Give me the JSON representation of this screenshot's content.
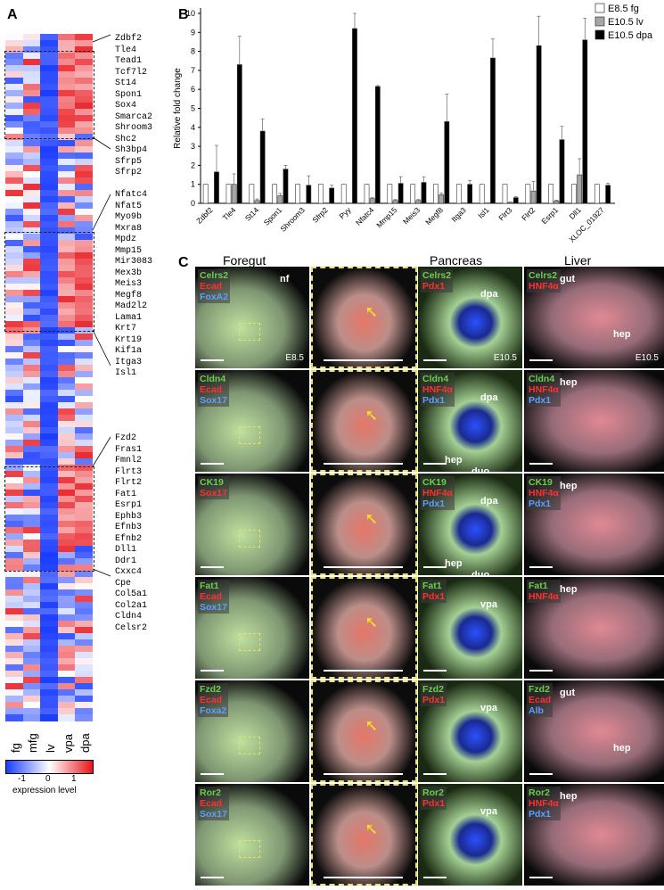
{
  "panel_labels": {
    "a": "A",
    "b": "B",
    "c": "C"
  },
  "heatmap": {
    "columns": [
      "fg",
      "mfg",
      "lv",
      "vpa",
      "dpa"
    ],
    "colorbar": {
      "ticks": [
        "-1",
        "0",
        "1"
      ],
      "title": "expression level",
      "colors": {
        "low": "#1a3cff",
        "mid": "#ffffff",
        "high": "#e8141c"
      }
    },
    "gene_groups": [
      [
        "Zdbf2",
        "Tle4",
        "Tead1",
        "Tcf7l2",
        "St14",
        "Spon1",
        "Sox4",
        "Smarca2",
        "Shroom3",
        "Shc2",
        "Sh3bp4",
        "Sfrp5",
        "Sfrp2"
      ],
      [
        "Nfatc4",
        "Nfat5",
        "Myo9b",
        "Mxra8",
        "Mpdz",
        "Mmp15",
        "Mir3083",
        "Mex3b",
        "Meis3",
        "Megf8",
        "Mad2l2",
        "Lama1",
        "Krt7",
        "Krt19",
        "Kif1a",
        "Itga3",
        "Isl1"
      ],
      [
        "Fzd2",
        "Fras1",
        "Fmnl2",
        "Flrt3",
        "Flrt2",
        "Fat1",
        "Esrp1",
        "Ephb3",
        "Efnb3",
        "Efnb2",
        "Dll1",
        "Ddr1",
        "Cxxc4",
        "Cpe",
        "Col5a1",
        "Col2a1",
        "Cldn4",
        "Celsr2"
      ]
    ]
  },
  "chart_data": {
    "type": "bar",
    "title": "",
    "xlabel": "",
    "ylabel": "Relative fold change",
    "ylim": [
      0,
      10
    ],
    "yticks": [
      0,
      1,
      2,
      3,
      4,
      5,
      6,
      7,
      8,
      9,
      10
    ],
    "legend_position": "top-right",
    "categories": [
      "Zdbf2",
      "Tle4",
      "St14",
      "Spon1",
      "Shroom3",
      "Sfrp2",
      "Pyy",
      "Nfatc4",
      "Mmp15",
      "Meis3",
      "Megf8",
      "Itga3",
      "Isl1",
      "Flrt3",
      "Flrt2",
      "Esrp1",
      "Dll1",
      "XLOC_01927"
    ],
    "series": [
      {
        "name": "E8.5 fg",
        "color": "#ffffff",
        "values": [
          1,
          1,
          1,
          1,
          1,
          1,
          1,
          1,
          1,
          1,
          1,
          1,
          1,
          1,
          1,
          1,
          1,
          1
        ]
      },
      {
        "name": "E10.5 lv",
        "color": "#a6a6a6",
        "values": [
          0.02,
          1.0,
          0.15,
          0.4,
          0.02,
          0.02,
          0.02,
          0.25,
          0.15,
          0.15,
          0.45,
          0.02,
          0.02,
          0.05,
          0.65,
          0.12,
          1.5,
          0.02
        ],
        "errors": [
          0,
          0.55,
          0.08,
          0.12,
          0,
          0,
          0,
          0.05,
          0.05,
          0.05,
          0.1,
          0,
          0,
          0.02,
          0.5,
          0.05,
          0.85,
          0
        ]
      },
      {
        "name": "E10.5 dpa",
        "color": "#000000",
        "values": [
          1.65,
          7.3,
          3.8,
          1.8,
          0.95,
          0.8,
          9.2,
          6.15,
          1.05,
          1.1,
          4.3,
          1.0,
          7.65,
          0.3,
          8.3,
          3.35,
          8.6,
          0.95
        ],
        "errors": [
          1.4,
          1.5,
          0.65,
          0.2,
          0.5,
          0.15,
          0.8,
          0.05,
          0.35,
          0.3,
          1.45,
          0.2,
          1.0,
          0.05,
          1.55,
          0.7,
          1.15,
          0.1
        ]
      }
    ]
  },
  "micro": {
    "col_headers": [
      "Foregut",
      "Pancreas",
      "Liver"
    ],
    "rows": [
      {
        "fg": [
          "Celrs2",
          "Ecad",
          "FoxA2"
        ],
        "panc": [
          "Celrs2",
          "Pdx1"
        ],
        "liv": [
          "Celrs2",
          "HNF4α"
        ],
        "fg_text": [
          "nf",
          "E8.5"
        ],
        "panc_text": [
          "dpa",
          "E10.5"
        ],
        "liv_text": [
          "gut",
          "hep",
          "E10.5"
        ]
      },
      {
        "fg": [
          "Cldn4",
          "Ecad",
          "Sox17"
        ],
        "panc": [
          "Cldn4",
          "HNF4α",
          "Pdx1"
        ],
        "liv": [
          "Cldn4",
          "HNF4α",
          "Pdx1"
        ],
        "panc_text": [
          "dpa",
          "hep",
          "duo"
        ],
        "liv_text": [
          "hep"
        ]
      },
      {
        "fg": [
          "CK19",
          "Sox17"
        ],
        "panc": [
          "CK19",
          "HNF4α",
          "Pdx1"
        ],
        "liv": [
          "CK19",
          "HNF4α",
          "Pdx1"
        ],
        "panc_text": [
          "dpa",
          "hep",
          "duo"
        ],
        "liv_text": [
          "hep"
        ]
      },
      {
        "fg": [
          "Fat1",
          "Ecad",
          "Sox17"
        ],
        "panc": [
          "Fat1",
          "Pdx1"
        ],
        "liv": [
          "Fat1",
          "HNF4α"
        ],
        "panc_text": [
          "vpa"
        ],
        "liv_text": [
          "hep"
        ]
      },
      {
        "fg": [
          "Fzd2",
          "Ecad",
          "Foxa2"
        ],
        "panc": [
          "Fzd2",
          "Pdx1"
        ],
        "liv": [
          "Fzd2",
          "Ecad",
          "Alb"
        ],
        "panc_text": [
          "vpa"
        ],
        "liv_text": [
          "gut",
          "hep"
        ]
      },
      {
        "fg": [
          "Ror2",
          "Ecad",
          "Sox17"
        ],
        "panc": [
          "Ror2",
          "Pdx1"
        ],
        "liv": [
          "Ror2",
          "HNF4α",
          "Pdx1"
        ],
        "panc_text": [
          "vpa"
        ],
        "liv_text": [
          "hep"
        ]
      }
    ],
    "stain_colors": {
      "green": "#6ad04a",
      "red": "#ff3030",
      "blue": "#5aa0ff"
    }
  }
}
